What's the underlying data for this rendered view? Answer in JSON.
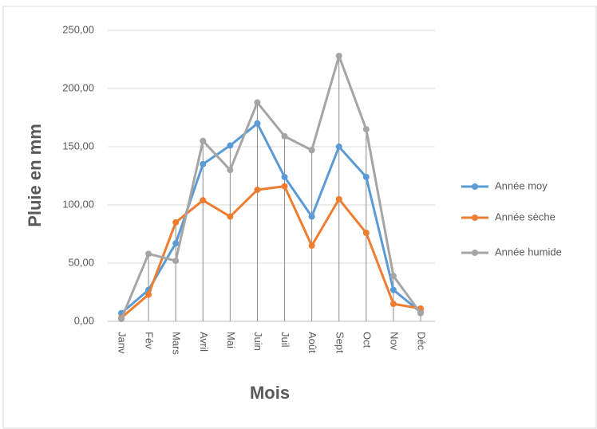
{
  "chart_data": {
    "type": "line",
    "ylabel": "Pluie en mm",
    "xlabel": "Mois",
    "categories": [
      "Janv",
      "Fév",
      "Mars",
      "Avril",
      "Mai",
      "Juin",
      "Juil",
      "Août",
      "Sept",
      "Oct",
      "Nov",
      "Déc"
    ],
    "series": [
      {
        "name": "Année moy",
        "color": "#5b9bd5",
        "values": [
          7,
          27,
          67,
          135,
          151,
          170,
          124,
          90,
          150,
          124,
          27,
          8
        ]
      },
      {
        "name": "Année sèche",
        "color": "#ed7d31",
        "values": [
          3,
          23,
          85,
          104,
          90,
          113,
          116,
          65,
          105,
          76,
          15,
          11
        ]
      },
      {
        "name": "Année humide",
        "color": "#a5a5a5",
        "values": [
          2,
          58,
          52,
          155,
          130,
          188,
          159,
          147,
          228,
          165,
          39,
          7
        ]
      }
    ],
    "ylim": [
      0,
      250
    ],
    "yticks": [
      {
        "value": 0,
        "label": "0,00"
      },
      {
        "value": 50,
        "label": "50,00"
      },
      {
        "value": 100,
        "label": "100,00"
      },
      {
        "value": 150,
        "label": "150,00"
      },
      {
        "value": 200,
        "label": "200,00"
      },
      {
        "value": 250,
        "label": "250,00"
      }
    ],
    "grid": true,
    "drop_lines": true,
    "legend": "right"
  }
}
